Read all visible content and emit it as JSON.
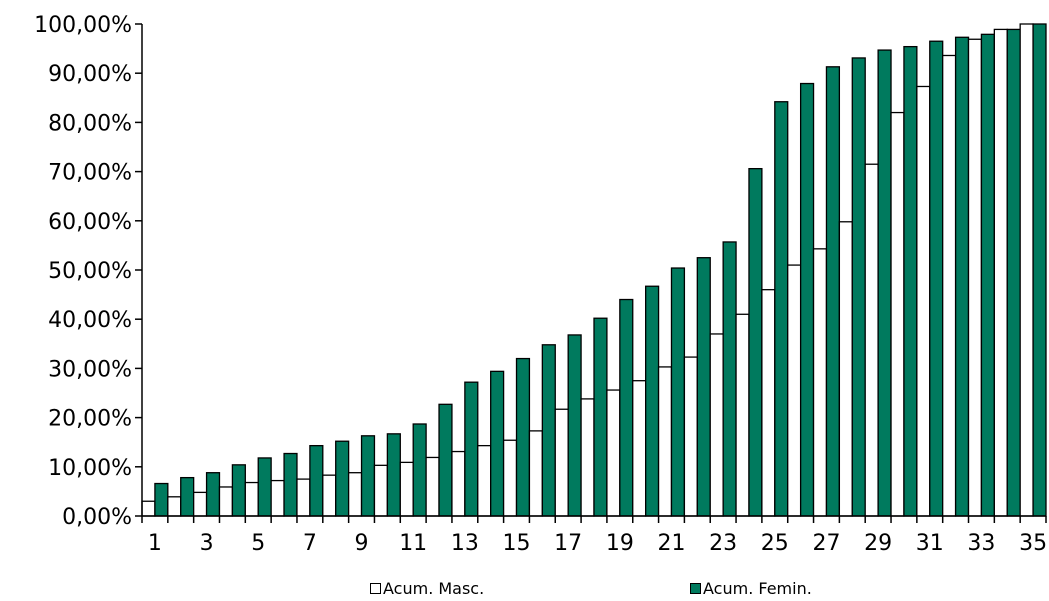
{
  "chart_data": {
    "type": "bar",
    "categories": [
      "1",
      "2",
      "3",
      "4",
      "5",
      "6",
      "7",
      "8",
      "9",
      "10",
      "11",
      "12",
      "13",
      "14",
      "15",
      "16",
      "17",
      "18",
      "19",
      "20",
      "21",
      "22",
      "23",
      "24",
      "25",
      "26",
      "27",
      "28",
      "29",
      "30",
      "31",
      "32",
      "33",
      "34",
      "35"
    ],
    "x_tick_labels": [
      "1",
      "3",
      "5",
      "7",
      "9",
      "11",
      "13",
      "15",
      "17",
      "19",
      "21",
      "23",
      "25",
      "27",
      "29",
      "31",
      "33",
      "35"
    ],
    "y_tick_labels": [
      "0,00%",
      "10,00%",
      "20,00%",
      "30,00%",
      "40,00%",
      "50,00%",
      "60,00%",
      "70,00%",
      "80,00%",
      "90,00%",
      "100,00%"
    ],
    "ylim": [
      0,
      100
    ],
    "grid": false,
    "legend_position": "bottom",
    "series": [
      {
        "name": "Acum. Masc.",
        "color": "#ffffff",
        "values": [
          3.0,
          3.9,
          4.8,
          5.9,
          6.8,
          7.2,
          7.5,
          8.3,
          8.8,
          10.3,
          10.9,
          11.9,
          13.1,
          14.3,
          15.4,
          17.3,
          21.7,
          23.8,
          25.6,
          27.5,
          30.3,
          32.3,
          37.0,
          41.0,
          46.0,
          51.0,
          54.3,
          59.8,
          71.5,
          82.0,
          87.3,
          93.6,
          96.9,
          98.9,
          100.0
        ]
      },
      {
        "name": "Acum. Femin.",
        "color": "#007a5e",
        "values": [
          6.6,
          7.8,
          8.8,
          10.4,
          11.8,
          12.7,
          14.3,
          15.2,
          16.3,
          16.7,
          18.7,
          22.7,
          27.2,
          29.4,
          32.0,
          34.8,
          36.8,
          40.2,
          44.0,
          46.7,
          50.4,
          52.5,
          55.7,
          70.6,
          84.2,
          87.9,
          91.3,
          93.1,
          94.7,
          95.4,
          96.5,
          97.3,
          97.9,
          98.9,
          100.0
        ]
      }
    ]
  }
}
